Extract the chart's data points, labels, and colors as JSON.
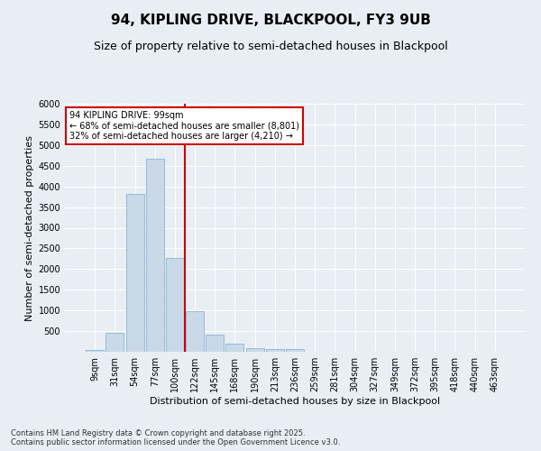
{
  "title": "94, KIPLING DRIVE, BLACKPOOL, FY3 9UB",
  "subtitle": "Size of property relative to semi-detached houses in Blackpool",
  "xlabel": "Distribution of semi-detached houses by size in Blackpool",
  "ylabel": "Number of semi-detached properties",
  "footnote": "Contains HM Land Registry data © Crown copyright and database right 2025.\nContains public sector information licensed under the Open Government Licence v3.0.",
  "property_label": "94 KIPLING DRIVE: 99sqm",
  "pct_smaller": 68,
  "count_smaller": 8801,
  "pct_larger": 32,
  "count_larger": 4210,
  "bar_color": "#c9d9e8",
  "bar_edge_color": "#7aaac8",
  "vline_color": "#cc0000",
  "annotation_box_edge": "#cc0000",
  "background_color": "#e8eef4",
  "categories": [
    "9sqm",
    "31sqm",
    "54sqm",
    "77sqm",
    "100sqm",
    "122sqm",
    "145sqm",
    "168sqm",
    "190sqm",
    "213sqm",
    "236sqm",
    "259sqm",
    "281sqm",
    "304sqm",
    "327sqm",
    "349sqm",
    "372sqm",
    "395sqm",
    "418sqm",
    "440sqm",
    "463sqm"
  ],
  "values": [
    50,
    450,
    3820,
    4660,
    2280,
    990,
    420,
    190,
    95,
    70,
    60,
    10,
    5,
    3,
    2,
    1,
    1,
    0,
    0,
    0,
    0
  ],
  "vline_position": 4.5,
  "ylim": [
    0,
    6000
  ],
  "yticks": [
    0,
    500,
    1000,
    1500,
    2000,
    2500,
    3000,
    3500,
    4000,
    4500,
    5000,
    5500,
    6000
  ],
  "title_fontsize": 11,
  "subtitle_fontsize": 9,
  "ylabel_fontsize": 8,
  "xlabel_fontsize": 8,
  "tick_fontsize": 7,
  "footnote_fontsize": 6
}
